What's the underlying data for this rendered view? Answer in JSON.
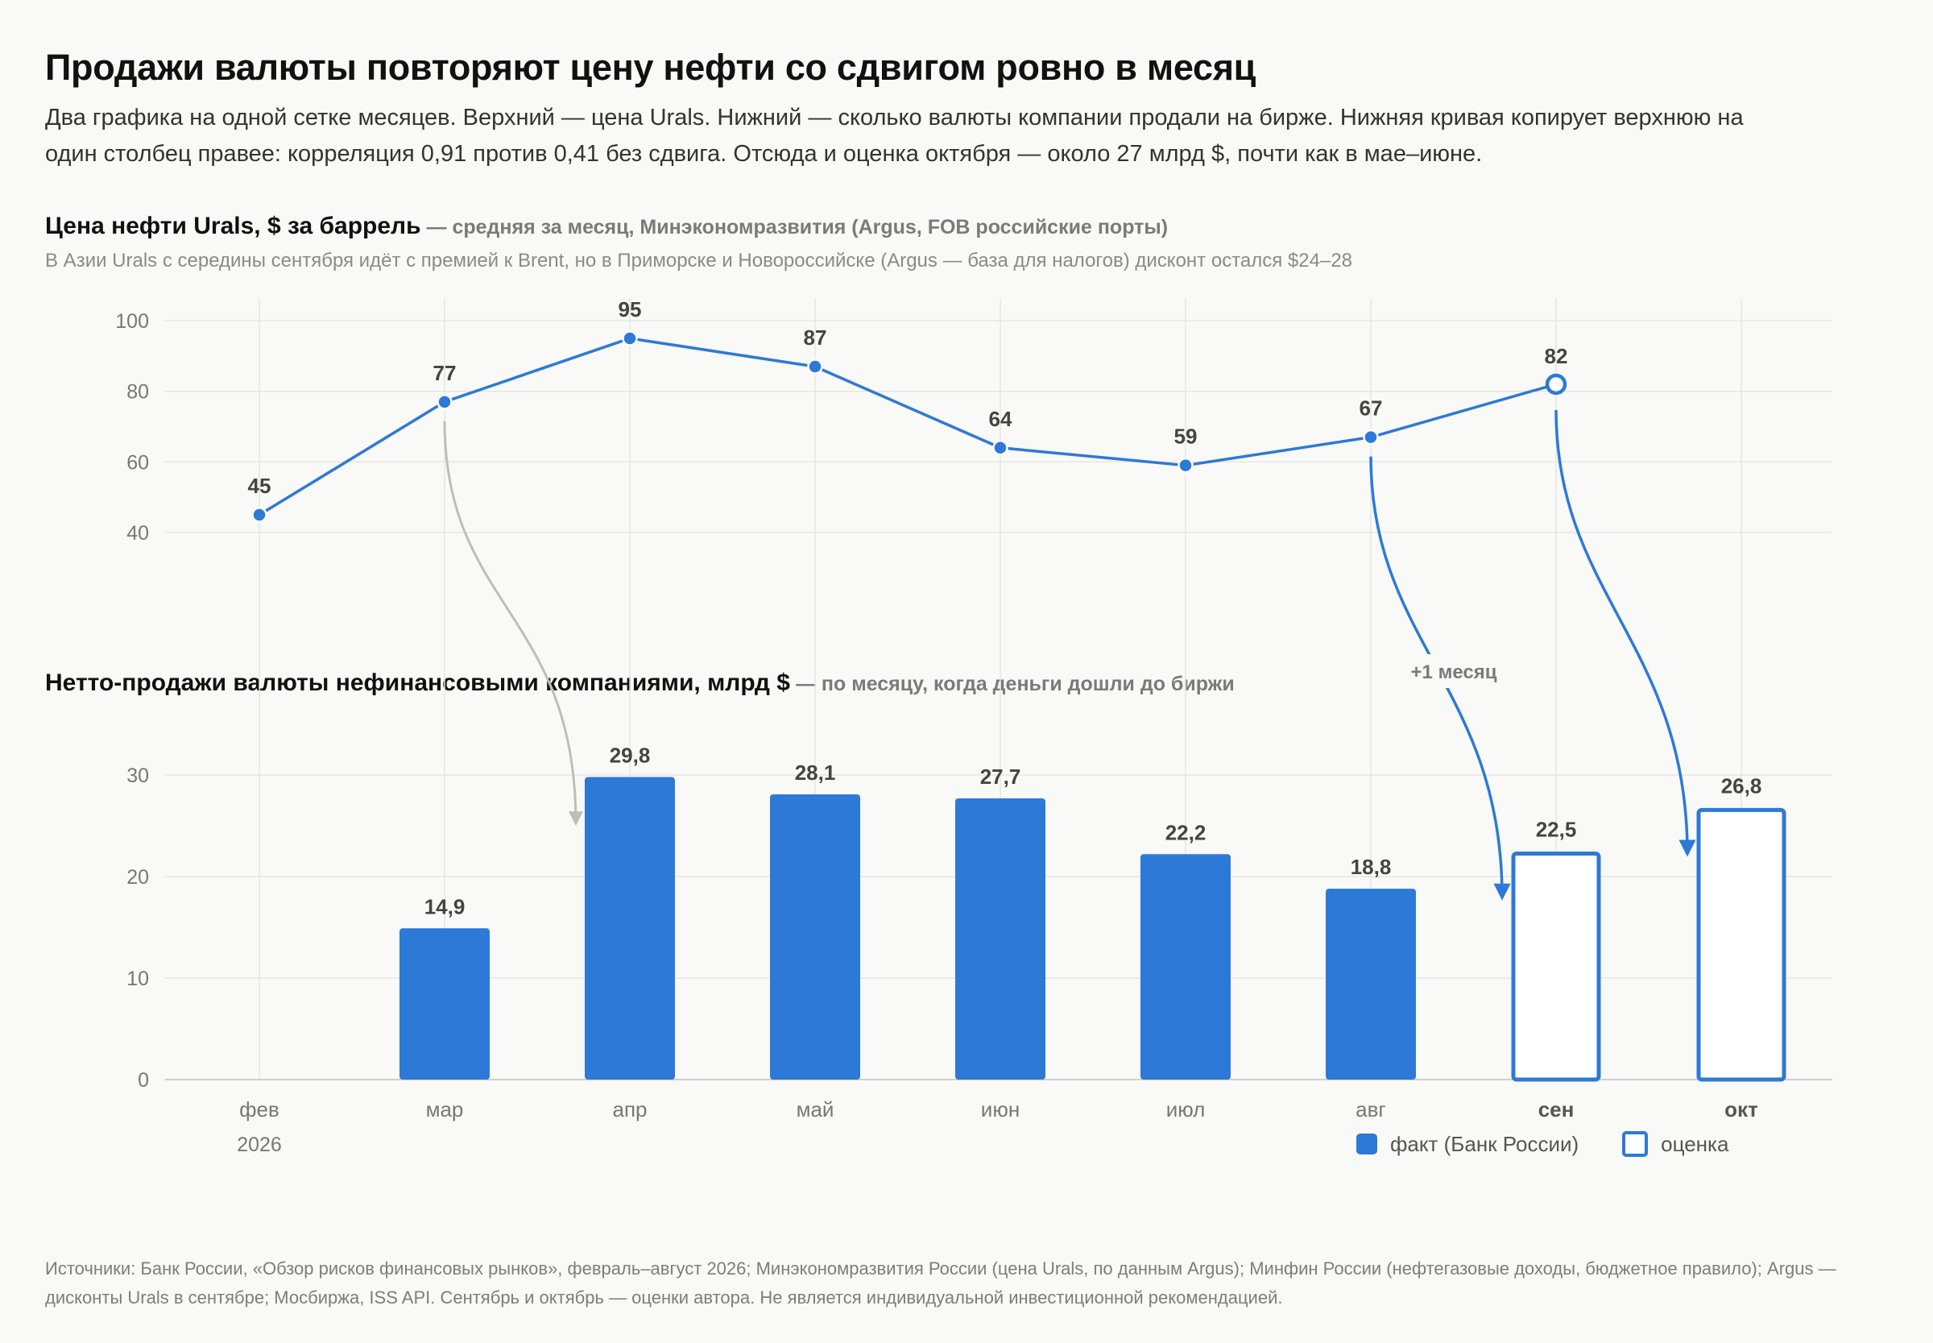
{
  "headline": "Продажи валюты повторяют цену нефти со сдвигом ровно в месяц",
  "lede": "Два графика на одной сетке месяцев. Верхний — цена Urals. Нижний — сколько валюты компании продали на бирже. Нижняя кривая копирует верхнюю на один столбец правее: корреляция 0,91 против 0,41 без сдвига. Отсюда и оценка октября — около 27 млрд $, почти как в мае–июне.",
  "top_section": {
    "title": "Цена нефти Urals, $ за баррель",
    "subtitle": " — средняя за месяц, Минэкономразвития (Argus, FOB российские порты)",
    "note": "В Азии Urals с середины сентября идёт с премией к Brent, но в Приморске и Новороссийске (Argus — база для налогов) дисконт остался $24–28"
  },
  "bottom_section": {
    "title": "Нетто-продажи валюты нефинансовыми компаниями, млрд $",
    "subtitle": " — по месяцу, когда деньги дошли до биржи"
  },
  "shift_label": "+1 месяц",
  "x_year": "2026",
  "legend": {
    "fact": "факт (Банк России)",
    "estimate": "оценка"
  },
  "footer": "Источники: Банк России, «Обзор рисков финансовых рынков», февраль–август 2026; Минэкономразвития России (цена Urals, по данным Argus); Минфин России (нефтегазовые доходы, бюджетное правило); Argus — дисконты Urals в сентябре; Мосбиржа, ISS API. Сентябрь и октябрь — оценки автора. Не является индивидуальной инвестиционной рекомендацией.",
  "colors": {
    "accent": "#2d79d7",
    "connector_gray": "#bdbdbd",
    "grid": "#e6e6e3"
  },
  "chart_data": [
    {
      "type": "line",
      "title": "Цена нефти Urals, $ за баррель",
      "categories": [
        "фев",
        "мар",
        "апр",
        "май",
        "июн",
        "июл",
        "авг",
        "сен",
        "окт"
      ],
      "values": [
        45,
        77,
        95,
        87,
        64,
        59,
        67,
        82,
        null
      ],
      "estimated": [
        false,
        false,
        false,
        false,
        false,
        false,
        false,
        true,
        false
      ],
      "yticks": [
        40,
        60,
        80,
        100
      ],
      "ylim": [
        35,
        105
      ],
      "grid": true
    },
    {
      "type": "bar",
      "title": "Нетто-продажи валюты нефинансовыми компаниями, млрд $",
      "categories": [
        "фев",
        "мар",
        "апр",
        "май",
        "июн",
        "июл",
        "авг",
        "сен",
        "окт"
      ],
      "values": [
        null,
        14.9,
        29.8,
        28.1,
        27.7,
        22.2,
        18.8,
        22.5,
        26.8
      ],
      "value_labels": [
        "",
        "14,9",
        "29,8",
        "28,1",
        "27,7",
        "22,2",
        "18,8",
        "22,5",
        "26,8"
      ],
      "estimated": [
        false,
        false,
        false,
        false,
        false,
        false,
        false,
        true,
        true
      ],
      "bold_categories": [
        "сен",
        "окт"
      ],
      "yticks": [
        0,
        10,
        20,
        30
      ],
      "ylim": [
        0,
        33
      ],
      "grid": true,
      "legend_position": "bottom-right"
    }
  ],
  "connectors": [
    {
      "from": "мар",
      "to": "апр",
      "style": "gray"
    },
    {
      "from": "авг",
      "to": "сен",
      "style": "accent"
    },
    {
      "from": "сен",
      "to": "окт",
      "style": "accent"
    }
  ]
}
